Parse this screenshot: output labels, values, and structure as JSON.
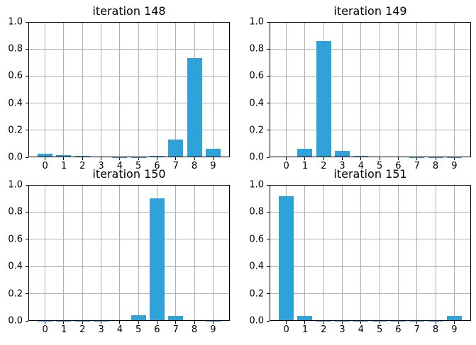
{
  "figure": {
    "background": "#ffffff",
    "bar_color": "#30a2da",
    "grid_color": "#b0b0b0",
    "spine_color": "#000000",
    "text_color": "#000000"
  },
  "chart_data": [
    {
      "type": "bar",
      "title": "iteration 148",
      "categories": [
        "0",
        "1",
        "2",
        "3",
        "4",
        "5",
        "6",
        "7",
        "8",
        "9"
      ],
      "values": [
        0.028,
        0.018,
        0.012,
        0.006,
        0.002,
        0.002,
        0.012,
        0.13,
        0.735,
        0.063
      ],
      "xlabel": "",
      "ylabel": "",
      "ylim": [
        0.0,
        1.0
      ],
      "yticks": [
        "0.0",
        "0.2",
        "0.4",
        "0.6",
        "0.8",
        "1.0"
      ],
      "xlim": [
        -0.9,
        9.9
      ],
      "grid": true,
      "legend": "none"
    },
    {
      "type": "bar",
      "title": "iteration 149",
      "categories": [
        "0",
        "1",
        "2",
        "3",
        "4",
        "5",
        "6",
        "7",
        "8",
        "9"
      ],
      "values": [
        0.006,
        0.065,
        0.86,
        0.045,
        0.012,
        0.007,
        0.007,
        0.002,
        0.001,
        0.001
      ],
      "xlabel": "",
      "ylabel": "",
      "ylim": [
        0.0,
        1.0
      ],
      "yticks": [
        "0.0",
        "0.2",
        "0.4",
        "0.6",
        "0.8",
        "1.0"
      ],
      "xlim": [
        -0.9,
        9.9
      ],
      "grid": true,
      "legend": "none"
    },
    {
      "type": "bar",
      "title": "iteration 150",
      "categories": [
        "0",
        "1",
        "2",
        "3",
        "4",
        "5",
        "6",
        "7",
        "8",
        "9"
      ],
      "values": [
        0.001,
        0.001,
        0.001,
        0.002,
        0.007,
        0.042,
        0.9,
        0.038,
        0.007,
        0.001
      ],
      "xlabel": "",
      "ylabel": "",
      "ylim": [
        0.0,
        1.0
      ],
      "yticks": [
        "0.0",
        "0.2",
        "0.4",
        "0.6",
        "0.8",
        "1.0"
      ],
      "xlim": [
        -0.9,
        9.9
      ],
      "grid": true,
      "legend": "none"
    },
    {
      "type": "bar",
      "title": "iteration 151",
      "categories": [
        "0",
        "1",
        "2",
        "3",
        "4",
        "5",
        "6",
        "7",
        "8",
        "9"
      ],
      "values": [
        0.915,
        0.038,
        0.001,
        0.001,
        0.001,
        0.001,
        0.001,
        0.001,
        0.002,
        0.038
      ],
      "xlabel": "",
      "ylabel": "",
      "ylim": [
        0.0,
        1.0
      ],
      "yticks": [
        "0.0",
        "0.2",
        "0.4",
        "0.6",
        "0.8",
        "1.0"
      ],
      "xlim": [
        -0.9,
        9.9
      ],
      "grid": true,
      "legend": "none"
    }
  ]
}
